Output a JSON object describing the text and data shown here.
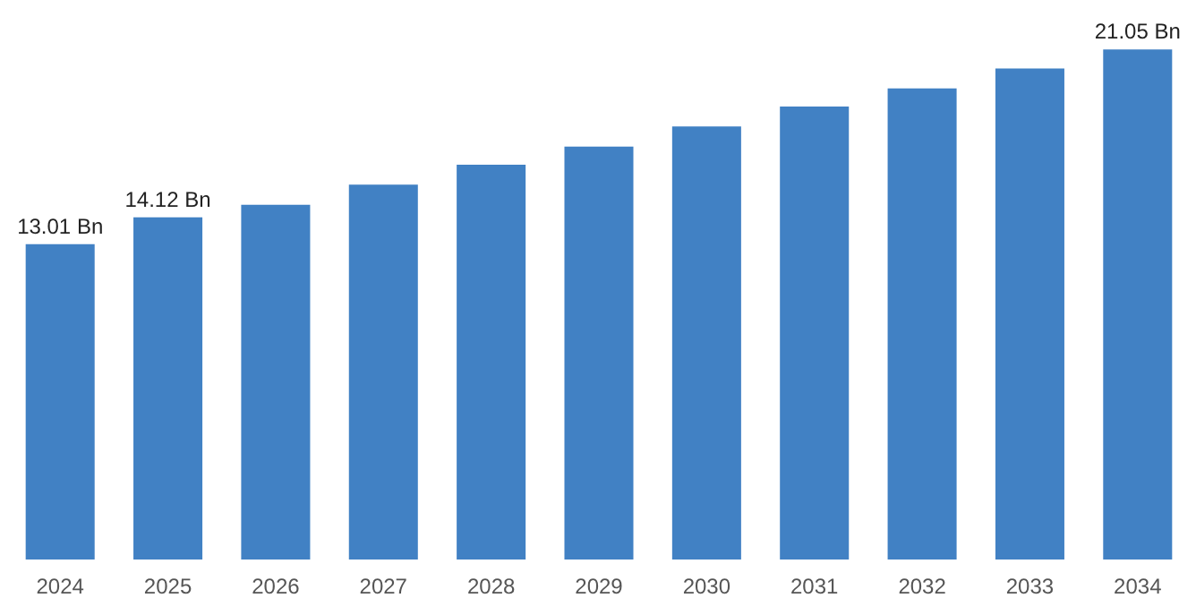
{
  "chart_data": {
    "type": "bar",
    "categories": [
      "2024",
      "2025",
      "2026",
      "2027",
      "2028",
      "2029",
      "2030",
      "2031",
      "2032",
      "2033",
      "2034"
    ],
    "values": [
      13.01,
      14.12,
      14.64,
      15.47,
      16.29,
      17.04,
      17.87,
      18.69,
      19.44,
      20.26,
      21.05
    ],
    "value_labels": [
      "13.01 Bn",
      "14.12 Bn",
      null,
      null,
      null,
      null,
      null,
      null,
      null,
      null,
      "21.05 Bn"
    ],
    "color": "#4181c4",
    "grid": false
  }
}
